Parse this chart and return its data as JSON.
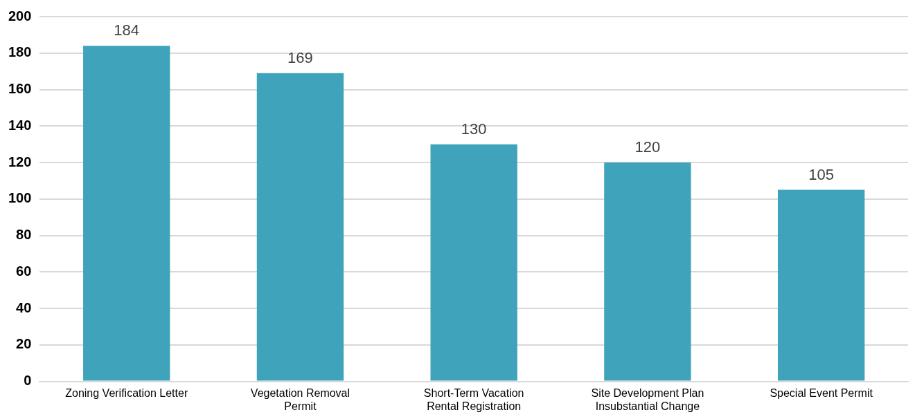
{
  "chart_data": {
    "type": "bar",
    "categories": [
      "Zoning Verification Letter",
      "Vegetation Removal Permit",
      "Short-Term Vacation Rental Registration",
      "Site Development Plan Insubstantial Change",
      "Special Event Permit"
    ],
    "values": [
      184,
      169,
      130,
      120,
      105
    ],
    "color": "#3ea3bb",
    "ylim": [
      0,
      200
    ],
    "yticks": [
      0,
      20,
      40,
      60,
      80,
      100,
      120,
      140,
      160,
      180,
      200
    ],
    "grid": "y",
    "legend": false,
    "data_labels": true
  }
}
